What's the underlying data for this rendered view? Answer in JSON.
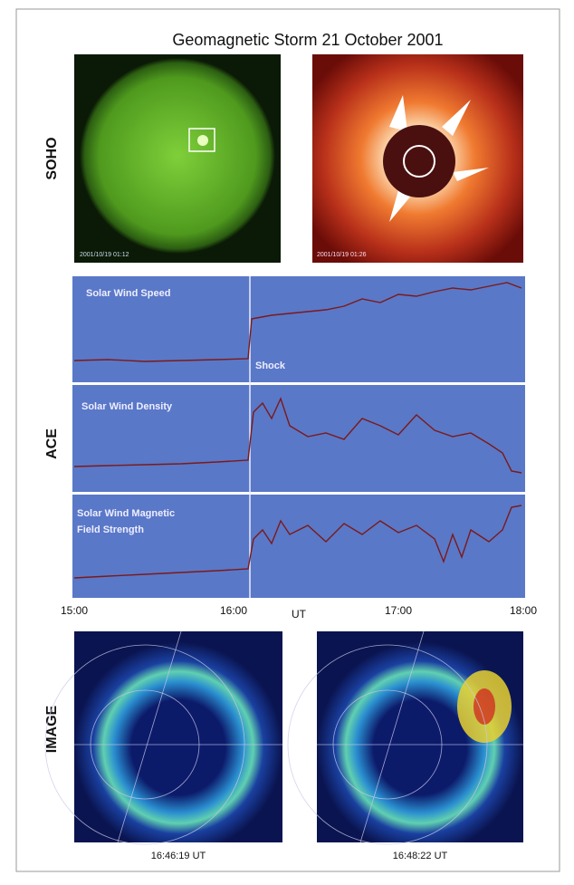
{
  "title": "Geomagnetic Storm 21 October 2001",
  "sections": [
    {
      "label": "SOHO"
    },
    {
      "label": "ACE"
    },
    {
      "label": "IMAGE"
    }
  ],
  "soho_images": [
    {
      "timestamp": "2001/10/19 01:12"
    },
    {
      "timestamp": "2001/10/19 01:26"
    }
  ],
  "ace_panels": [
    {
      "label_lines": [
        "Solar Wind Speed"
      ]
    },
    {
      "label_lines": [
        "Solar Wind Density"
      ]
    },
    {
      "label_lines": [
        "Solar Wind Magnetic",
        "Field Strength"
      ]
    }
  ],
  "shock_label": "Shock",
  "time_axis": {
    "ticks": [
      "15:00",
      "16:00",
      "17:00",
      "18:00"
    ],
    "label": "UT"
  },
  "image_captions": [
    "16:46:19 UT",
    "16:48:22 UT"
  ]
}
